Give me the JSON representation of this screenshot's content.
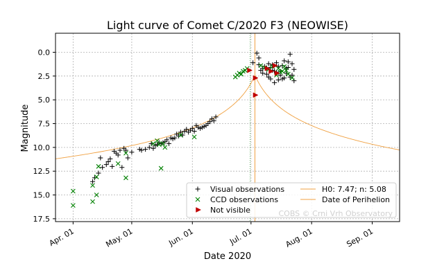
{
  "chart_data": {
    "type": "scatter",
    "title": "Light curve of Comet C/2020 F3 (NEOWISE)",
    "xlabel": "Date 2020",
    "ylabel": "Magnitude",
    "x_axis": "days since 2020-04-01",
    "xlim": [
      -9,
      167
    ],
    "ylim": [
      17.8,
      -2
    ],
    "y_inverted": true,
    "grid": true,
    "legend_position": "lower right",
    "x_ticks": [
      {
        "x": 0,
        "label": "Apr. 01"
      },
      {
        "x": 30,
        "label": "May. 01"
      },
      {
        "x": 61,
        "label": "Jun. 01"
      },
      {
        "x": 91,
        "label": "Jul. 01"
      },
      {
        "x": 122,
        "label": "Aug. 01"
      },
      {
        "x": 153,
        "label": "Sep. 01"
      }
    ],
    "y_ticks": [
      {
        "y": 0,
        "label": "0.0"
      },
      {
        "y": 2.5,
        "label": "2.5"
      },
      {
        "y": 5,
        "label": "5.0"
      },
      {
        "y": 7.5,
        "label": "7.5"
      },
      {
        "y": 10,
        "label": "10.0"
      },
      {
        "y": 12.5,
        "label": "12.5"
      },
      {
        "y": 15,
        "label": "15.0"
      },
      {
        "y": 17.5,
        "label": "17.5"
      }
    ],
    "watermark": "COBS © Crni Vrh Observatory",
    "model_curve": {
      "name": "H0: 7.47; n: 5.08",
      "H0": 7.47,
      "n": 5.08,
      "color": "#f0a040",
      "perihelion_x": 93
    },
    "perihelion": {
      "name": "Date of Perihelion",
      "x": 93,
      "color": "#f0a040"
    },
    "green_dashed_vline": {
      "x": 90.5
    },
    "series": [
      {
        "name": "Visual observations",
        "marker": "plus",
        "color": "#000000",
        "points": [
          [
            10,
            13.6
          ],
          [
            11,
            13.2
          ],
          [
            13,
            12.7
          ],
          [
            14,
            11.1
          ],
          [
            15,
            12.1
          ],
          [
            17,
            11.8
          ],
          [
            18,
            11.5
          ],
          [
            19,
            11.2
          ],
          [
            20,
            12.0
          ],
          [
            21,
            10.4
          ],
          [
            22,
            10.6
          ],
          [
            23,
            10.8
          ],
          [
            24,
            10.3
          ],
          [
            25,
            12.1
          ],
          [
            26,
            10.1
          ],
          [
            27,
            10.3
          ],
          [
            28,
            11.1
          ],
          [
            30,
            10.5
          ],
          [
            34,
            10.2
          ],
          [
            35,
            10.3
          ],
          [
            37,
            10.2
          ],
          [
            39,
            10.0
          ],
          [
            40,
            9.6
          ],
          [
            41,
            10.1
          ],
          [
            42,
            9.8
          ],
          [
            43,
            9.7
          ],
          [
            44,
            9.5
          ],
          [
            45,
            9.6
          ],
          [
            46,
            9.5
          ],
          [
            47,
            9.4
          ],
          [
            48,
            9.2
          ],
          [
            49,
            9.6
          ],
          [
            50,
            9.0
          ],
          [
            51,
            9.1
          ],
          [
            52,
            9.0
          ],
          [
            53,
            8.6
          ],
          [
            54,
            8.8
          ],
          [
            55,
            8.4
          ],
          [
            56,
            8.7
          ],
          [
            57,
            8.3
          ],
          [
            58,
            8.1
          ],
          [
            59,
            8.4
          ],
          [
            60,
            8.2
          ],
          [
            61,
            8.0
          ],
          [
            62,
            8.3
          ],
          [
            63,
            7.7
          ],
          [
            64,
            7.9
          ],
          [
            65,
            8.0
          ],
          [
            66,
            7.9
          ],
          [
            67,
            7.8
          ],
          [
            68,
            7.7
          ],
          [
            69,
            7.5
          ],
          [
            70,
            7.3
          ],
          [
            71,
            7.0
          ],
          [
            72,
            7.2
          ],
          [
            73,
            6.8
          ],
          [
            92,
            1.1
          ],
          [
            94,
            0.1
          ],
          [
            95,
            0.6
          ],
          [
            96,
            1.9
          ],
          [
            97,
            2.2
          ],
          [
            98,
            1.5
          ],
          [
            99,
            1.7
          ],
          [
            100,
            2.6
          ],
          [
            101,
            1.6
          ],
          [
            102,
            1.9
          ],
          [
            103,
            3.2
          ],
          [
            104,
            2.1
          ],
          [
            105,
            2.9
          ],
          [
            106,
            2.4
          ],
          [
            107,
            1.4
          ],
          [
            108,
            2.7
          ],
          [
            109,
            1.7
          ],
          [
            110,
            1.0
          ],
          [
            111,
            0.2
          ],
          [
            112,
            2.4
          ],
          [
            113,
            3.0
          ],
          [
            95,
            1.3
          ],
          [
            97,
            1.7
          ],
          [
            99,
            2.3
          ],
          [
            100,
            1.2
          ],
          [
            101,
            2.8
          ],
          [
            102,
            1.3
          ],
          [
            103,
            2.0
          ],
          [
            104,
            1.1
          ],
          [
            105,
            1.5
          ],
          [
            106,
            2.0
          ],
          [
            107,
            2.8
          ],
          [
            108,
            0.9
          ],
          [
            109,
            2.2
          ],
          [
            110,
            1.6
          ],
          [
            111,
            2.6
          ],
          [
            112,
            1.2
          ],
          [
            113,
            1.8
          ]
        ]
      },
      {
        "name": "CCD observations",
        "marker": "x",
        "color": "#008000",
        "points": [
          [
            0,
            14.6
          ],
          [
            0,
            16.1
          ],
          [
            10,
            15.7
          ],
          [
            10,
            14.0
          ],
          [
            12,
            13.1
          ],
          [
            12,
            15.0
          ],
          [
            13,
            12.0
          ],
          [
            23,
            11.7
          ],
          [
            27,
            10.6
          ],
          [
            27,
            13.2
          ],
          [
            41,
            9.6
          ],
          [
            43,
            9.3
          ],
          [
            44,
            9.7
          ],
          [
            45,
            12.2
          ],
          [
            46,
            9.6
          ],
          [
            47,
            10.0
          ],
          [
            55,
            8.7
          ],
          [
            62,
            8.9
          ],
          [
            83,
            2.6
          ],
          [
            84,
            2.4
          ],
          [
            85,
            2.2
          ],
          [
            86,
            2.3
          ],
          [
            87,
            2.0
          ],
          [
            88,
            1.9
          ],
          [
            89,
            1.7
          ],
          [
            96,
            1.4
          ],
          [
            98,
            1.6
          ],
          [
            100,
            1.8
          ],
          [
            102,
            1.5
          ],
          [
            104,
            2.4
          ],
          [
            105,
            1.7
          ],
          [
            106,
            2.1
          ],
          [
            107,
            2.0
          ],
          [
            108,
            1.5
          ],
          [
            109,
            1.9
          ],
          [
            110,
            2.3
          ],
          [
            112,
            2.7
          ]
        ]
      },
      {
        "name": "Not visible",
        "marker": "triangle-right",
        "color": "#c00000",
        "points": [
          [
            90,
            1.9
          ],
          [
            93,
            2.7
          ],
          [
            93,
            4.5
          ],
          [
            99,
            1.7
          ],
          [
            101,
            2.0
          ],
          [
            103,
            1.4
          ],
          [
            104,
            2.2
          ]
        ]
      }
    ]
  }
}
